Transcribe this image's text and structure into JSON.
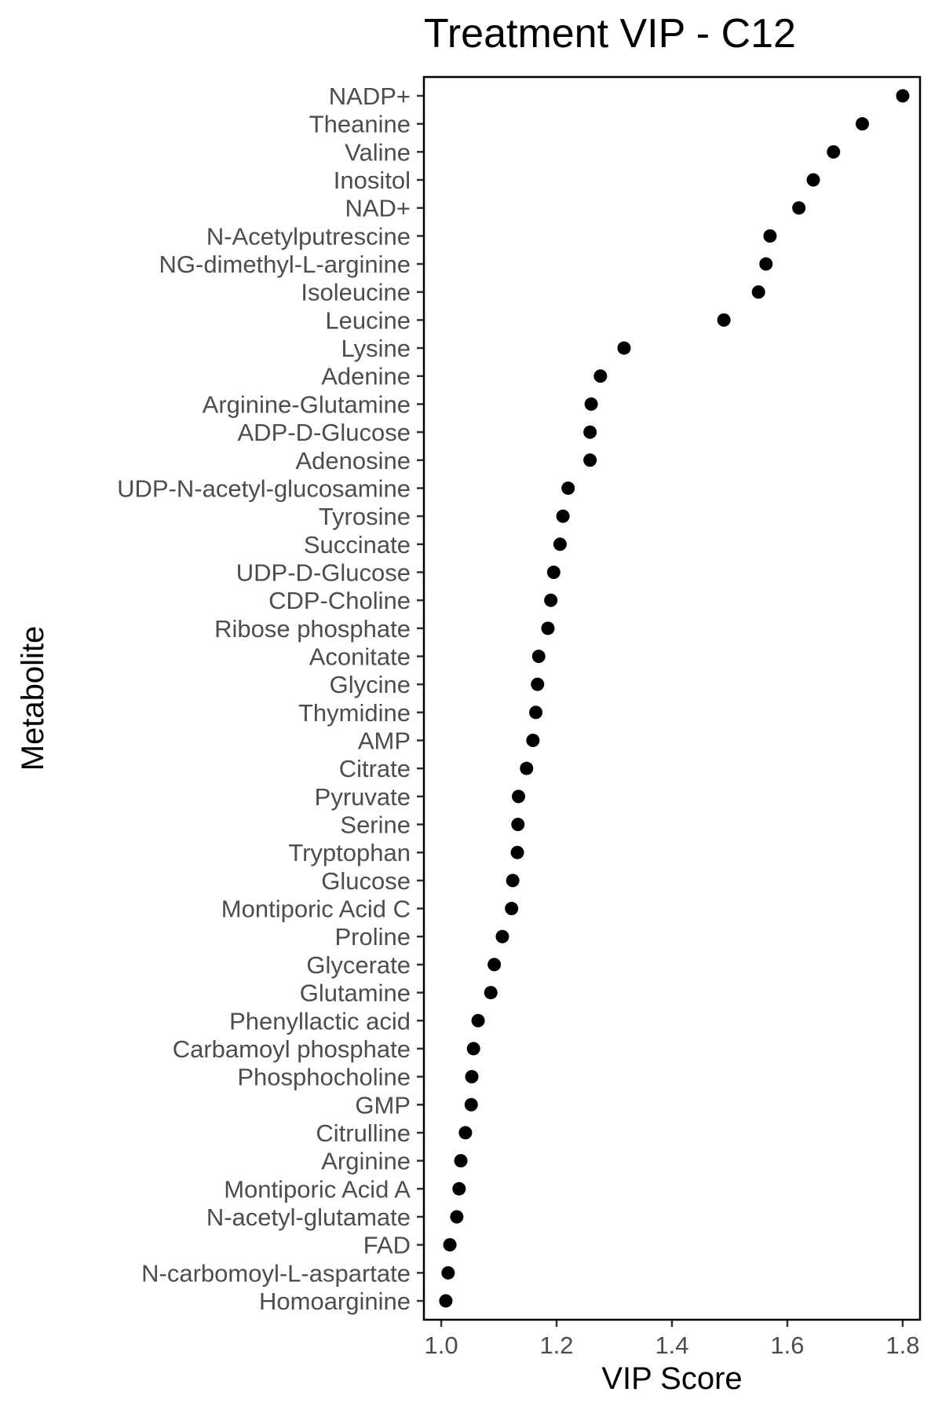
{
  "chart_data": {
    "type": "scatter",
    "title": "Treatment VIP - C12",
    "xlabel": "VIP Score",
    "ylabel": "Metabolite",
    "xlim": [
      0.97,
      1.83
    ],
    "xticks": [
      1.0,
      1.2,
      1.4,
      1.6,
      1.8
    ],
    "xtick_labels": [
      "1.0",
      "1.2",
      "1.4",
      "1.6",
      "1.8"
    ],
    "grid": false,
    "legend": "none",
    "point_color": "#000000",
    "categories": [
      "NADP+",
      "Theanine",
      "Valine",
      "Inositol",
      "NAD+",
      "N-Acetylputrescine",
      "NG-dimethyl-L-arginine",
      "Isoleucine",
      "Leucine",
      "Lysine",
      "Adenine",
      "Arginine-Glutamine",
      "ADP-D-Glucose",
      "Adenosine",
      "UDP-N-acetyl-glucosamine",
      "Tyrosine",
      "Succinate",
      "UDP-D-Glucose",
      "CDP-Choline",
      "Ribose phosphate",
      "Aconitate",
      "Glycine",
      "Thymidine",
      "AMP",
      "Citrate",
      "Pyruvate",
      "Serine",
      "Tryptophan",
      "Glucose",
      "Montiporic Acid C",
      "Proline",
      "Glycerate",
      "Glutamine",
      "Phenyllactic acid",
      "Carbamoyl phosphate",
      "Phosphocholine",
      "GMP",
      "Citrulline",
      "Arginine",
      "Montiporic Acid A",
      "N-acetyl-glutamate",
      "FAD",
      "N-carbomoyl-L-aspartate",
      "Homoarginine"
    ],
    "values": [
      1.8,
      1.73,
      1.68,
      1.645,
      1.62,
      1.57,
      1.563,
      1.55,
      1.49,
      1.317,
      1.276,
      1.26,
      1.258,
      1.258,
      1.22,
      1.211,
      1.206,
      1.195,
      1.19,
      1.185,
      1.169,
      1.167,
      1.164,
      1.159,
      1.148,
      1.134,
      1.133,
      1.132,
      1.124,
      1.122,
      1.106,
      1.092,
      1.086,
      1.064,
      1.056,
      1.053,
      1.052,
      1.042,
      1.034,
      1.031,
      1.027,
      1.015,
      1.012,
      1.008
    ]
  }
}
